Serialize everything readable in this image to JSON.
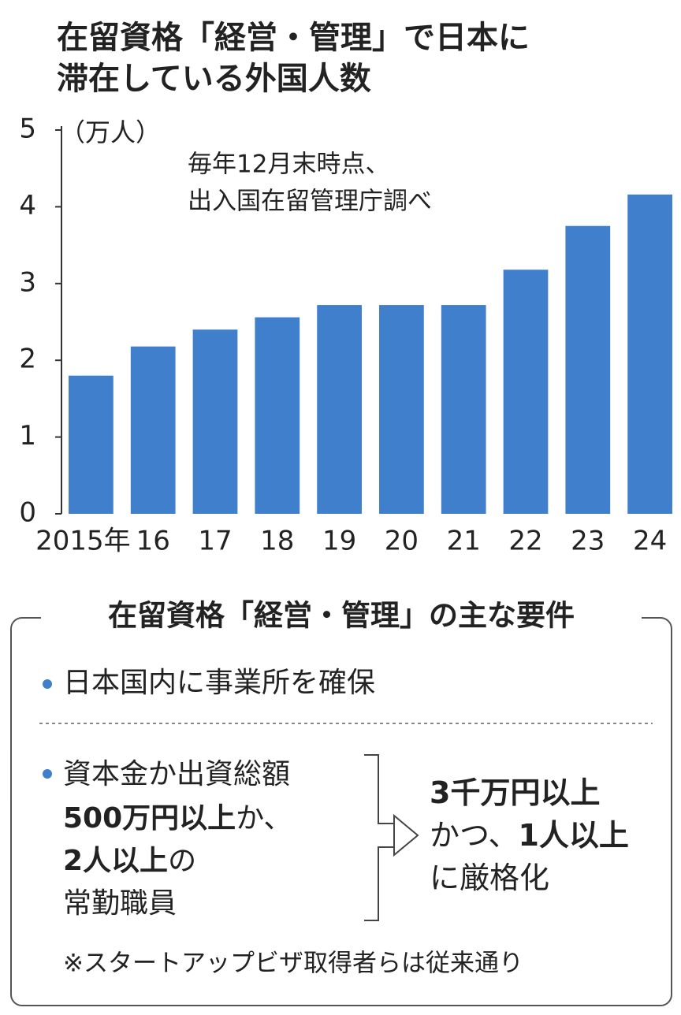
{
  "chart_data": {
    "type": "bar",
    "title": [
      "在留資格「経営・管理」で日本に",
      "滞在している外国人数"
    ],
    "y_label": "（万人）",
    "subtitle": [
      "毎年12月末時点、",
      "出入国在留管理庁調べ"
    ],
    "categories": [
      "2015年",
      "16",
      "17",
      "18",
      "19",
      "20",
      "21",
      "22",
      "23",
      "24"
    ],
    "values": [
      1.8,
      2.18,
      2.4,
      2.56,
      2.72,
      2.72,
      2.72,
      3.18,
      3.75,
      4.16
    ],
    "color": "#3f7fcb",
    "ylim": [
      0,
      5
    ],
    "yticks": [
      0,
      1,
      2,
      3,
      4,
      5
    ],
    "grid": false
  },
  "requirements": {
    "title": "在留資格「経営・管理」の主な要件",
    "item1": "日本国内に事業所を確保",
    "item2": [
      "資本金か出資総額",
      "500万円以上",
      "か、",
      "2人以上",
      "の",
      "常勤職員"
    ],
    "result": [
      "3千万円以上",
      "かつ、",
      "1人以上",
      "に厳格化"
    ],
    "note": "※スタートアップビザ取得者らは従来通り"
  }
}
